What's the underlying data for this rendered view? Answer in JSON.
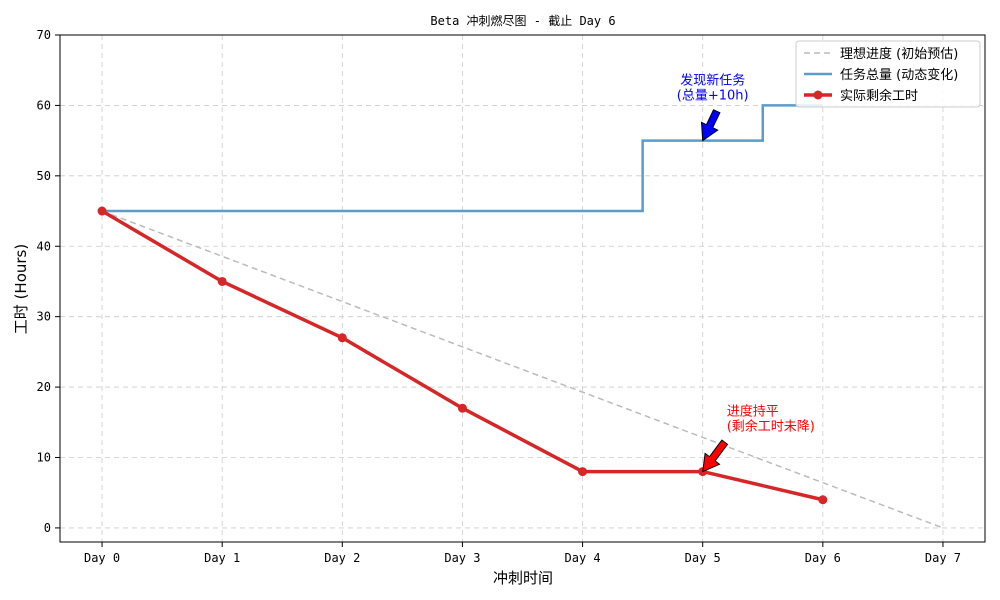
{
  "chart_data": {
    "type": "line",
    "title": "Beta 冲刺燃尽图 - 截止 Day 6",
    "xlabel": "冲刺时间",
    "ylabel": "工时 (Hours)",
    "categories": [
      "Day 0",
      "Day 1",
      "Day 2",
      "Day 3",
      "Day 4",
      "Day 5",
      "Day 6",
      "Day 7"
    ],
    "x_ticks": [
      0,
      1,
      2,
      3,
      4,
      5,
      6,
      7
    ],
    "y_ticks": [
      0,
      10,
      20,
      30,
      40,
      50,
      60,
      70
    ],
    "xlim": [
      -0.35,
      7.35
    ],
    "ylim": [
      -2,
      70
    ],
    "grid": true,
    "legend_position": "top-right",
    "series": [
      {
        "name": "理想进度 (初始预估)",
        "style": "dashed",
        "color": "#bbbbbb",
        "x": [
          0,
          7
        ],
        "y": [
          45,
          0
        ]
      },
      {
        "name": "任务总量 (动态变化)",
        "style": "step",
        "color": "#5b9cc9",
        "x": [
          0,
          4.5,
          4.5,
          5.5,
          5.5,
          6
        ],
        "y": [
          45,
          45,
          55,
          55,
          60,
          60
        ]
      },
      {
        "name": "实际剩余工时",
        "style": "line-markers",
        "color": "#d62728",
        "x": [
          0,
          1,
          2,
          3,
          4,
          5,
          6
        ],
        "y": [
          45,
          35,
          27,
          17,
          8,
          8,
          4
        ]
      }
    ],
    "annotations": [
      {
        "lines": [
          "发现新任务",
          "(总量+10h)"
        ],
        "color": "#0000ff",
        "target": [
          5,
          55
        ],
        "text_at": [
          5.05,
          63
        ]
      },
      {
        "lines": [
          "进度持平",
          "(剩余工时未降)"
        ],
        "color": "#ff0000",
        "target": [
          5,
          8
        ],
        "text_at": [
          5.2,
          16
        ]
      }
    ]
  }
}
